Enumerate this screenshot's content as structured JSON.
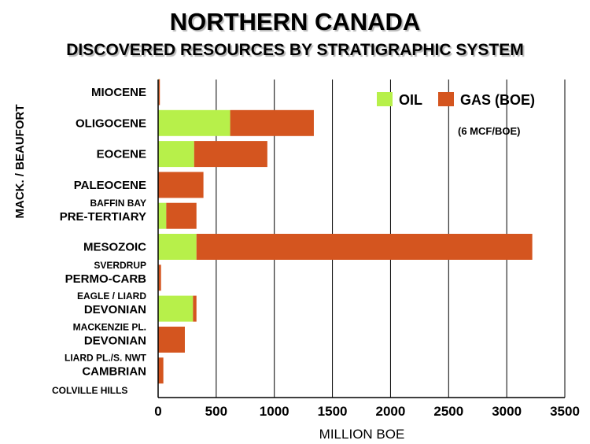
{
  "chart_data": {
    "type": "bar",
    "orientation": "horizontal",
    "stacked": true,
    "title": "NORTHERN CANADA",
    "subtitle": "DISCOVERED RESOURCES BY STRATIGRAPHIC SYSTEM",
    "xlabel": "MILLION BOE",
    "xlim": [
      0,
      3500
    ],
    "xticks": [
      "0",
      "500",
      "1000",
      "1500",
      "2000",
      "2500",
      "3000",
      "3500"
    ],
    "ylabel": "MACK. / BEAUFORT",
    "legend_position": "top-right",
    "legend_note": "(6 MCF/BOE)",
    "grid": true,
    "colors": {
      "oil": "#b7f04a",
      "gas": "#d4551f"
    },
    "categories": [
      {
        "label": "MIOCENE",
        "region": ""
      },
      {
        "label": "OLIGOCENE",
        "region": ""
      },
      {
        "label": "EOCENE",
        "region": ""
      },
      {
        "label": "PALEOCENE",
        "region": ""
      },
      {
        "label": "PRE-TERTIARY",
        "region": "BAFFIN BAY"
      },
      {
        "label": "MESOZOIC",
        "region": ""
      },
      {
        "label": "PERMO-CARB",
        "region": "SVERDRUP"
      },
      {
        "label": "DEVONIAN",
        "region": "EAGLE / LIARD"
      },
      {
        "label": "DEVONIAN",
        "region": "MACKENZIE PL."
      },
      {
        "label": "CAMBRIAN",
        "region": "LIARD PL./S. NWT"
      }
    ],
    "bottom_region_label": "COLVILLE HILLS",
    "series": [
      {
        "name": "OIL",
        "values": [
          5,
          620,
          310,
          0,
          70,
          330,
          5,
          300,
          0,
          0
        ]
      },
      {
        "name": "GAS (BOE)",
        "values": [
          10,
          720,
          630,
          390,
          260,
          2890,
          20,
          30,
          230,
          45
        ]
      }
    ]
  }
}
